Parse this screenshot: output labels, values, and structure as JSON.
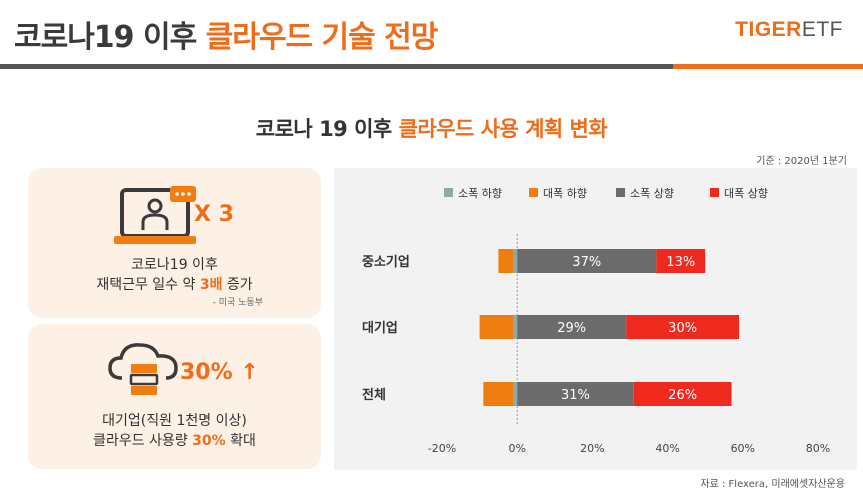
{
  "header": {
    "title_main": "코로나19 이후 ",
    "title_accent": "클라우드 기술 전망",
    "logo_tiger": "TIGER",
    "logo_etf": "ETF"
  },
  "subtitle": {
    "main": "코로나 19 이후 ",
    "accent": "클라우드 사용 계획 변화"
  },
  "basis": "기준 : 2020년 1분기",
  "card1": {
    "big": "X 3",
    "line1": "코로나19 이후",
    "line2_pre": "재택근무 일수 약 ",
    "line2_accent": "3배",
    "line2_post": " 증가",
    "source": "- 미국 노동부"
  },
  "card2": {
    "big": "30% ↑",
    "line1": "대기업(직원 1천명 이상)",
    "line2_pre": "클라우드 사용량 ",
    "line2_accent": "30%",
    "line2_post": " 확대"
  },
  "footer_source": "자료 : Flexera, 미래에셋자산운용",
  "chart_data": {
    "type": "bar",
    "orientation": "horizontal",
    "stacked": "diverging",
    "categories": [
      "중소기업",
      "대기업",
      "전체"
    ],
    "series": [
      {
        "name": "소폭 하향",
        "color": "#8fa9a9",
        "values": [
          -1,
          -1,
          -1
        ]
      },
      {
        "name": "대폭 하향",
        "color": "#ef7d10",
        "values": [
          -4,
          -9,
          -8
        ]
      },
      {
        "name": "소폭 상향",
        "color": "#6b6b6b",
        "values": [
          37,
          29,
          31
        ]
      },
      {
        "name": "대폭 상향",
        "color": "#ee2a1f",
        "values": [
          13,
          30,
          26
        ]
      }
    ],
    "data_labels": {
      "소폭 상향": [
        "37%",
        "29%",
        "31%"
      ],
      "대폭 상향": [
        "13%",
        "30%",
        "26%"
      ]
    },
    "xlim": [
      -20,
      80
    ],
    "xticks": [
      -20,
      0,
      20,
      40,
      60,
      80
    ],
    "xtick_labels": [
      "-20%",
      "0%",
      "20%",
      "40%",
      "60%",
      "80%"
    ],
    "legend_position": "top",
    "grid": false
  }
}
